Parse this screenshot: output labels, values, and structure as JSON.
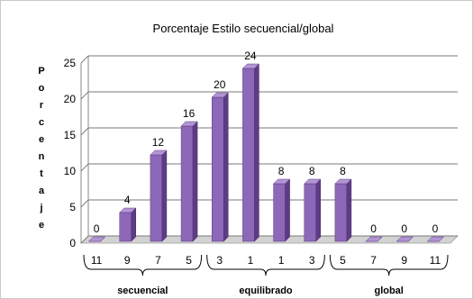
{
  "chart_data": {
    "type": "bar",
    "title": "Porcentaje Estilo  secuencial/global",
    "ylabel": "Porcentaje",
    "xlabel": "",
    "ylim": [
      0,
      25
    ],
    "yticks": [
      "0",
      "5",
      "10",
      "15",
      "20",
      "25"
    ],
    "grid": true,
    "categories": [
      "11",
      "9",
      "7",
      "5",
      "3",
      "1",
      "1",
      "3",
      "5",
      "7",
      "9",
      "11"
    ],
    "values": [
      0,
      4,
      12,
      16,
      20,
      24,
      8,
      8,
      8,
      0,
      0,
      0
    ],
    "data_labels": [
      "0",
      "4",
      "12",
      "16",
      "20",
      "24",
      "8",
      "8",
      "8",
      "0",
      "0",
      "0"
    ],
    "groups": [
      {
        "label": "secuencial",
        "start": 0,
        "end": 3
      },
      {
        "label": "equilibrado",
        "start": 4,
        "end": 7
      },
      {
        "label": "global",
        "start": 8,
        "end": 11
      }
    ],
    "colors": {
      "bar_front": "#8e68b8",
      "bar_side": "#5e3c85",
      "bar_top": "#b395d6",
      "grid": "#7a7a7a",
      "floor": "#d2d2d2",
      "border": "#c8c8c8"
    }
  }
}
